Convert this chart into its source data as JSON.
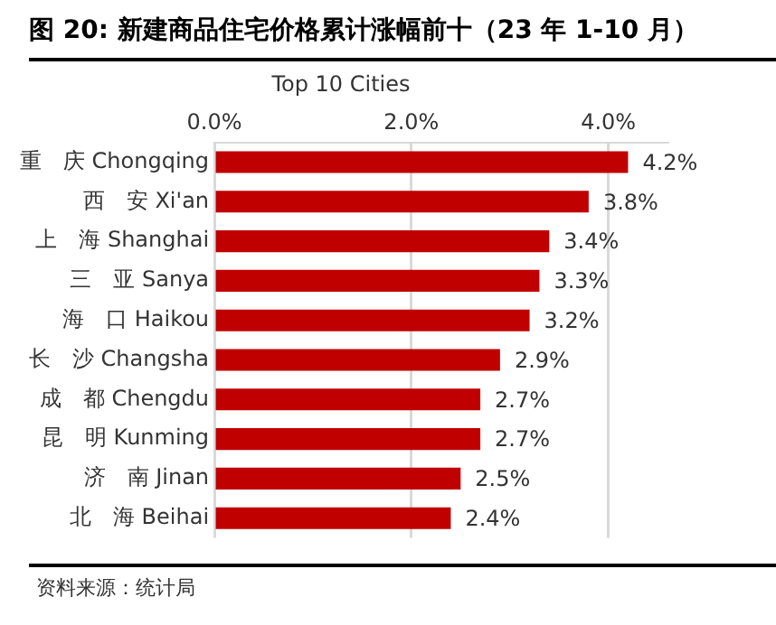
{
  "chart_data": {
    "type": "bar",
    "orientation": "horizontal",
    "subtitle": "图 20: 新建商品住宅价格累计涨幅前十（23 年 1-10 月）",
    "title": "Top 10 Cities",
    "categories": [
      "重　庆 Chongqing",
      "西　安 Xi'an",
      "上　海 Shanghai",
      "三　亚 Sanya",
      "海　口 Haikou",
      "长　沙 Changsha",
      "成　都 Chengdu",
      "昆　明 Kunming",
      "济　南 Jinan",
      "北　海 Beihai"
    ],
    "values": [
      4.2,
      3.8,
      3.4,
      3.3,
      3.2,
      2.9,
      2.7,
      2.7,
      2.5,
      2.4
    ],
    "value_labels": [
      "4.2%",
      "3.8%",
      "3.4%",
      "3.3%",
      "3.2%",
      "2.9%",
      "2.7%",
      "2.7%",
      "2.5%",
      "2.4%"
    ],
    "color": "#c00000",
    "xlim": [
      0,
      4.6
    ],
    "xticks": [
      {
        "value": 0,
        "label": "0.0%"
      },
      {
        "value": 2,
        "label": "2.0%"
      },
      {
        "value": 4,
        "label": "4.0%"
      }
    ],
    "grid": "x",
    "legend": false,
    "annotations": [
      "资料来源：统计局"
    ]
  }
}
